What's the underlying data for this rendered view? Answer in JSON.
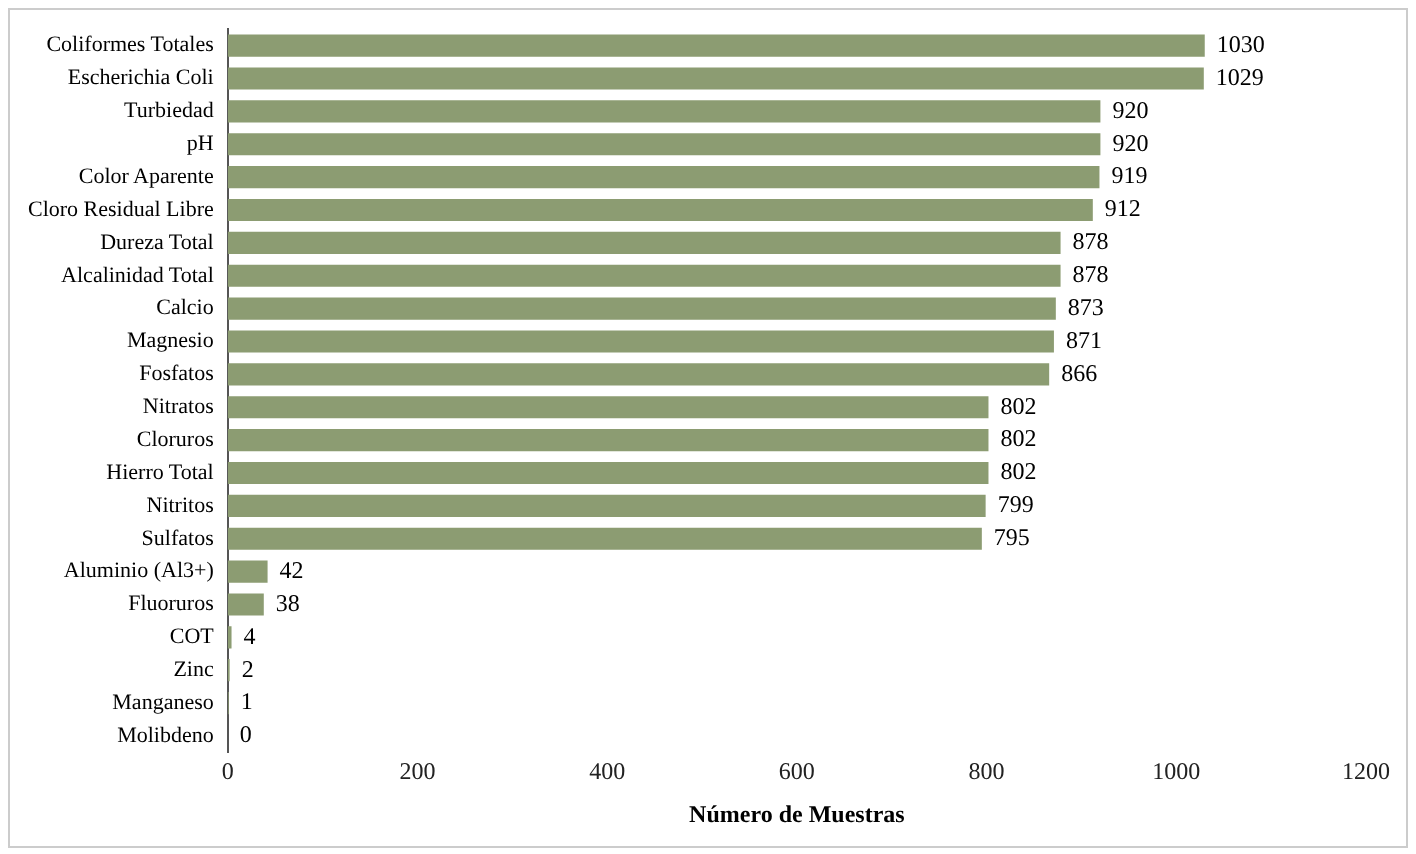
{
  "chart_data": {
    "type": "bar",
    "orientation": "horizontal",
    "xlabel": "Número de Muestras",
    "categories": [
      "Coliformes Totales",
      "Escherichia Coli",
      "Turbiedad",
      "pH",
      "Color Aparente",
      "Cloro Residual Libre",
      "Dureza Total",
      "Alcalinidad Total",
      "Calcio",
      "Magnesio",
      "Fosfatos",
      "Nitratos",
      "Cloruros",
      "Hierro Total",
      "Nitritos",
      "Sulfatos",
      "Aluminio (Al3+)",
      "Fluoruros",
      "COT",
      "Zinc",
      "Manganeso",
      "Molibdeno"
    ],
    "values": [
      1030,
      1029,
      920,
      920,
      919,
      912,
      878,
      878,
      873,
      871,
      866,
      802,
      802,
      802,
      799,
      795,
      42,
      38,
      4,
      2,
      1,
      0
    ],
    "color": "#8c9c72",
    "xlim": [
      0,
      1200
    ],
    "xticks": [
      0,
      200,
      400,
      600,
      800,
      1000,
      1200
    ],
    "grid": false,
    "legend": false,
    "data_labels": true
  }
}
